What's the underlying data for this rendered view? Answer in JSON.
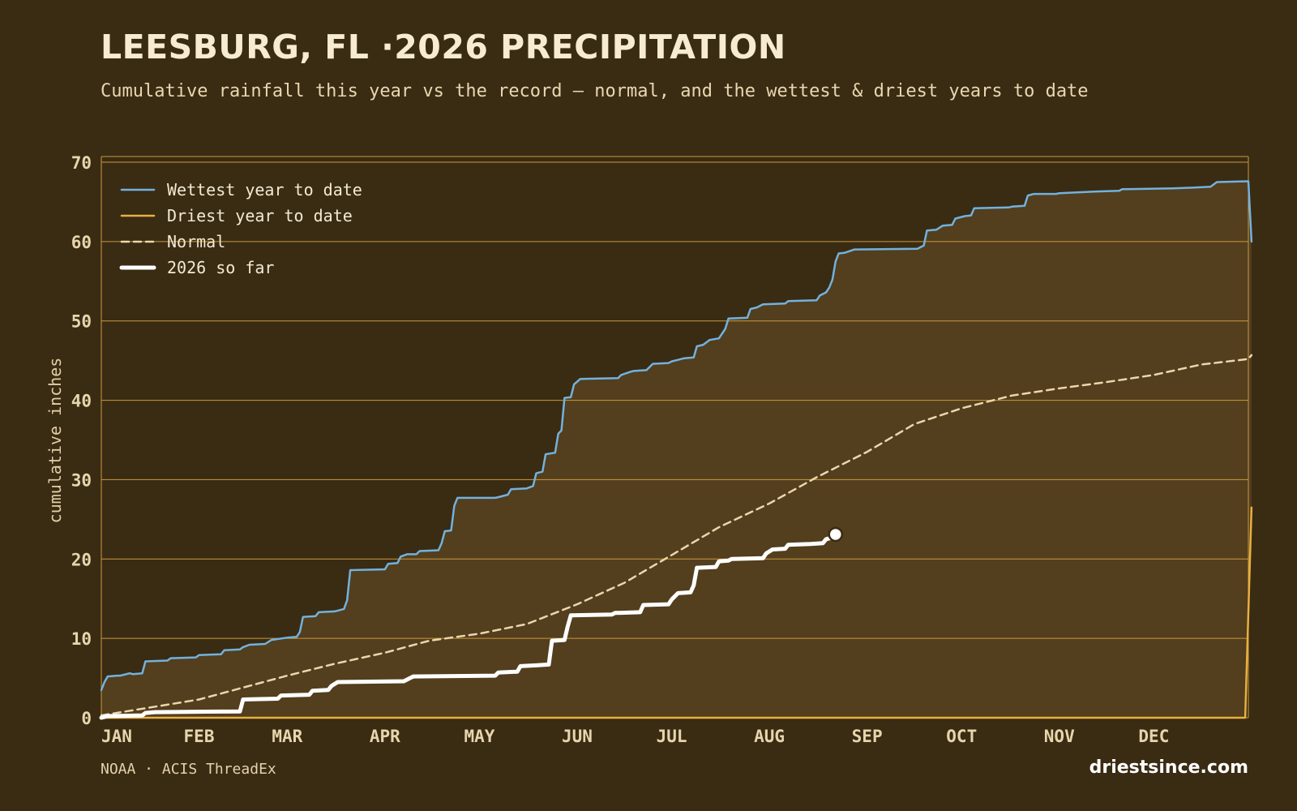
{
  "title": "LEESBURG, FL ·2026 PRECIPITATION",
  "subtitle": "Cumulative rainfall this year vs the record — normal, and the wettest & driest years to date",
  "source": "NOAA · ACIS ThreadEx",
  "brand": "driestsince.com",
  "colors": {
    "background": "#3a2b13",
    "plot_fill": "#533e1d",
    "grid": "#c99a3e",
    "wettest": "#72b2de",
    "driest": "#e8b040",
    "normal": "#ead7ad",
    "current": "#ffffff"
  },
  "chart_data": {
    "type": "line",
    "title": "LEESBURG, FL ·2026 PRECIPITATION",
    "ylabel": "cumulative inches",
    "xlabel": "",
    "x_unit": "day of year",
    "xlim": [
      1,
      365
    ],
    "ylim": [
      0,
      70
    ],
    "yticks": [
      0,
      10,
      20,
      30,
      40,
      50,
      60,
      70
    ],
    "xticks": [
      {
        "label": "JAN",
        "day": 1
      },
      {
        "label": "FEB",
        "day": 32
      },
      {
        "label": "MAR",
        "day": 60
      },
      {
        "label": "APR",
        "day": 91
      },
      {
        "label": "MAY",
        "day": 121
      },
      {
        "label": "JUN",
        "day": 152
      },
      {
        "label": "JUL",
        "day": 182
      },
      {
        "label": "AUG",
        "day": 213
      },
      {
        "label": "SEP",
        "day": 244
      },
      {
        "label": "OCT",
        "day": 274
      },
      {
        "label": "NOV",
        "day": 305
      },
      {
        "label": "DEC",
        "day": 335
      }
    ],
    "grid": true,
    "legend_position": "top-left",
    "series": [
      {
        "name": "Wettest year to date",
        "style": "solid",
        "points": [
          [
            1,
            3.5
          ],
          [
            2,
            4.5
          ],
          [
            3,
            5.2
          ],
          [
            6,
            5.3
          ],
          [
            7,
            5.3
          ],
          [
            10,
            5.6
          ],
          [
            11,
            5.5
          ],
          [
            14,
            5.6
          ],
          [
            15,
            7.1
          ],
          [
            22,
            7.2
          ],
          [
            23,
            7.5
          ],
          [
            31,
            7.6
          ],
          [
            32,
            7.9
          ],
          [
            32,
            7.9
          ],
          [
            39,
            8.0
          ],
          [
            40,
            8.5
          ],
          [
            45,
            8.6
          ],
          [
            46,
            8.9
          ],
          [
            48,
            9.2
          ],
          [
            53,
            9.3
          ],
          [
            55,
            9.8
          ],
          [
            60,
            10.1
          ],
          [
            63,
            10.2
          ],
          [
            64,
            10.8
          ],
          [
            65,
            12.7
          ],
          [
            69,
            12.8
          ],
          [
            70,
            13.3
          ],
          [
            75,
            13.4
          ],
          [
            78,
            13.7
          ],
          [
            79,
            14.8
          ],
          [
            80,
            18.6
          ],
          [
            91,
            18.7
          ],
          [
            92,
            19.4
          ],
          [
            95,
            19.5
          ],
          [
            96,
            20.3
          ],
          [
            98,
            20.6
          ],
          [
            101,
            20.6
          ],
          [
            102,
            21.0
          ],
          [
            108,
            21.1
          ],
          [
            109,
            22.0
          ],
          [
            110,
            23.5
          ],
          [
            112,
            23.6
          ],
          [
            113,
            26.7
          ],
          [
            114,
            27.7
          ],
          [
            126,
            27.7
          ],
          [
            127,
            27.8
          ],
          [
            130,
            28.1
          ],
          [
            131,
            28.8
          ],
          [
            136,
            28.9
          ],
          [
            138,
            29.2
          ],
          [
            139,
            30.8
          ],
          [
            141,
            31.0
          ],
          [
            142,
            33.2
          ],
          [
            145,
            33.4
          ],
          [
            146,
            35.8
          ],
          [
            147,
            36.2
          ],
          [
            148,
            40.3
          ],
          [
            150,
            40.4
          ],
          [
            151,
            42.0
          ],
          [
            153,
            42.7
          ],
          [
            165,
            42.8
          ],
          [
            166,
            43.2
          ],
          [
            169,
            43.6
          ],
          [
            170,
            43.7
          ],
          [
            174,
            43.8
          ],
          [
            176,
            44.6
          ],
          [
            181,
            44.7
          ],
          [
            182,
            44.9
          ],
          [
            184,
            45.1
          ],
          [
            186,
            45.3
          ],
          [
            189,
            45.4
          ],
          [
            190,
            46.8
          ],
          [
            192,
            47.0
          ],
          [
            194,
            47.6
          ],
          [
            197,
            47.8
          ],
          [
            199,
            49.0
          ],
          [
            200,
            50.3
          ],
          [
            206,
            50.4
          ],
          [
            207,
            51.5
          ],
          [
            209,
            51.7
          ],
          [
            211,
            52.1
          ],
          [
            218,
            52.2
          ],
          [
            219,
            52.5
          ],
          [
            228,
            52.6
          ],
          [
            229,
            53.2
          ],
          [
            231,
            53.6
          ],
          [
            232,
            54.2
          ],
          [
            233,
            55.2
          ],
          [
            234,
            57.5
          ],
          [
            235,
            58.5
          ],
          [
            237,
            58.6
          ],
          [
            240,
            59.0
          ],
          [
            260,
            59.1
          ],
          [
            262,
            59.5
          ],
          [
            263,
            61.4
          ],
          [
            266,
            61.5
          ],
          [
            268,
            62.0
          ],
          [
            271,
            62.1
          ],
          [
            272,
            62.9
          ],
          [
            275,
            63.2
          ],
          [
            277,
            63.3
          ],
          [
            278,
            64.2
          ],
          [
            289,
            64.3
          ],
          [
            290,
            64.4
          ],
          [
            294,
            64.5
          ],
          [
            295,
            65.8
          ],
          [
            297,
            66.0
          ],
          [
            304,
            66.0
          ],
          [
            305,
            66.1
          ],
          [
            316,
            66.3
          ],
          [
            324,
            66.4
          ],
          [
            325,
            66.6
          ],
          [
            341,
            66.7
          ],
          [
            348,
            66.8
          ],
          [
            353,
            66.9
          ],
          [
            355,
            67.5
          ],
          [
            365,
            67.6
          ],
          [
            366,
            60.0
          ]
        ]
      },
      {
        "name": "Driest year to date",
        "style": "solid",
        "points": [
          [
            1,
            0.0
          ],
          [
            364,
            0.0
          ],
          [
            366,
            26.5
          ]
        ]
      },
      {
        "name": "Normal",
        "style": "dashed",
        "points": [
          [
            1,
            0.3
          ],
          [
            15,
            1.2
          ],
          [
            32,
            2.3
          ],
          [
            46,
            3.8
          ],
          [
            60,
            5.3
          ],
          [
            75,
            6.8
          ],
          [
            91,
            8.2
          ],
          [
            105,
            9.7
          ],
          [
            121,
            10.6
          ],
          [
            136,
            11.8
          ],
          [
            152,
            14.3
          ],
          [
            167,
            17.0
          ],
          [
            182,
            20.5
          ],
          [
            197,
            24.0
          ],
          [
            213,
            27.0
          ],
          [
            228,
            30.3
          ],
          [
            244,
            33.5
          ],
          [
            259,
            37.0
          ],
          [
            274,
            39.0
          ],
          [
            290,
            40.6
          ],
          [
            305,
            41.5
          ],
          [
            320,
            42.3
          ],
          [
            335,
            43.2
          ],
          [
            350,
            44.5
          ],
          [
            365,
            45.2
          ],
          [
            366,
            45.7
          ]
        ]
      },
      {
        "name": "2026 so far",
        "style": "thick",
        "points": [
          [
            1,
            0.0
          ],
          [
            3,
            0.2
          ],
          [
            14,
            0.3
          ],
          [
            15,
            0.6
          ],
          [
            18,
            0.7
          ],
          [
            45,
            0.8
          ],
          [
            46,
            2.3
          ],
          [
            57,
            2.4
          ],
          [
            58,
            2.8
          ],
          [
            67,
            2.9
          ],
          [
            68,
            3.4
          ],
          [
            73,
            3.5
          ],
          [
            74,
            4.0
          ],
          [
            76,
            4.5
          ],
          [
            97,
            4.6
          ],
          [
            100,
            5.2
          ],
          [
            126,
            5.3
          ],
          [
            127,
            5.7
          ],
          [
            133,
            5.8
          ],
          [
            134,
            6.5
          ],
          [
            139,
            6.6
          ],
          [
            143,
            6.7
          ],
          [
            144,
            9.7
          ],
          [
            148,
            9.8
          ],
          [
            149,
            11.5
          ],
          [
            150,
            12.9
          ],
          [
            163,
            13.0
          ],
          [
            164,
            13.2
          ],
          [
            172,
            13.3
          ],
          [
            173,
            14.2
          ],
          [
            181,
            14.3
          ],
          [
            182,
            14.9
          ],
          [
            184,
            15.7
          ],
          [
            188,
            15.8
          ],
          [
            189,
            16.7
          ],
          [
            190,
            18.9
          ],
          [
            196,
            19.0
          ],
          [
            197,
            19.7
          ],
          [
            200,
            19.8
          ],
          [
            201,
            20.0
          ],
          [
            211,
            20.1
          ],
          [
            212,
            20.7
          ],
          [
            214,
            21.2
          ],
          [
            218,
            21.3
          ],
          [
            219,
            21.8
          ],
          [
            226,
            21.9
          ],
          [
            230,
            22.0
          ],
          [
            231,
            22.5
          ],
          [
            233,
            22.7
          ],
          [
            234,
            23.1
          ]
        ],
        "end_marker": [
          234,
          23.1
        ]
      }
    ]
  }
}
